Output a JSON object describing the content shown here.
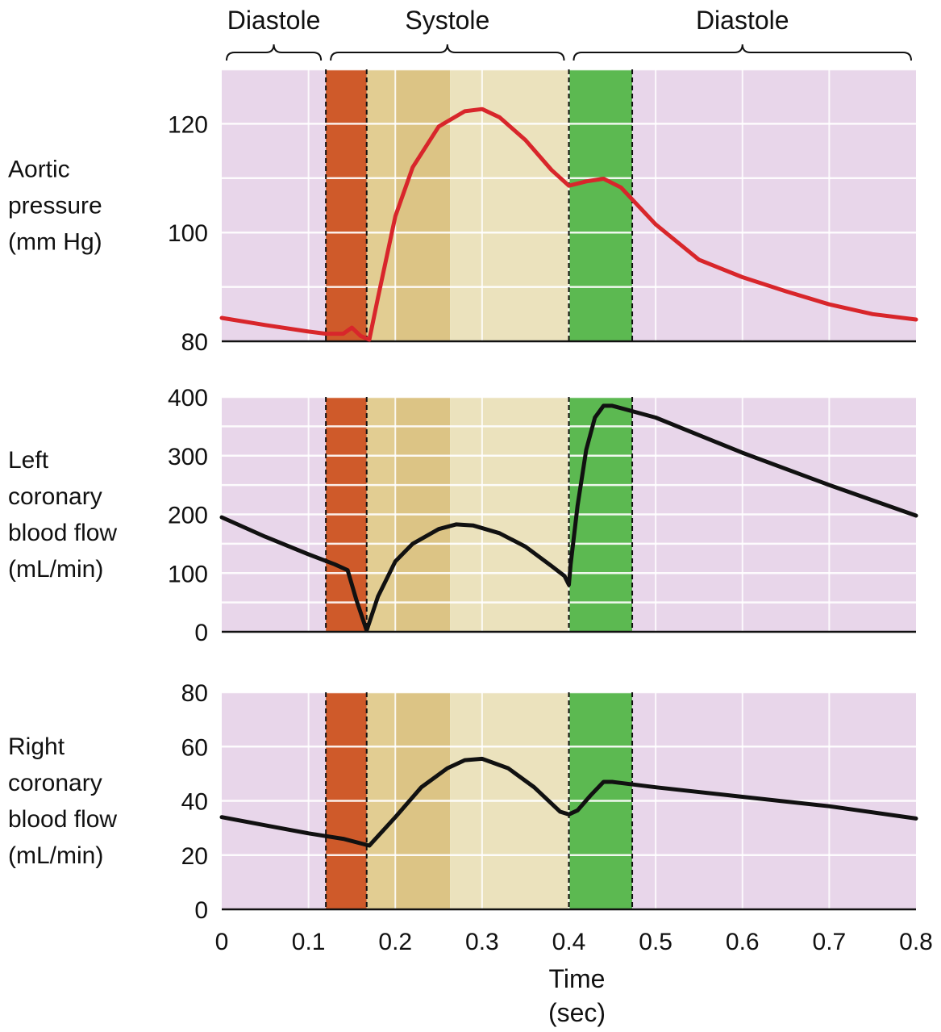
{
  "chart_data": {
    "type": "line",
    "x_unit_note": "",
    "xlim": [
      0,
      0.8
    ],
    "x_ticks": [
      0,
      0.1,
      0.2,
      0.3,
      0.4,
      0.5,
      0.6,
      0.7,
      0.8
    ],
    "x_tick_labels": [
      "0",
      "0.1",
      "0.2",
      "0.3",
      "0.4",
      "0.5",
      "0.6",
      "0.7",
      "0.8"
    ],
    "xlabel_line1": "Time",
    "xlabel_line2": "(sec)",
    "phases": [
      {
        "label": "Diastole",
        "start": 0.0,
        "end": 0.12
      },
      {
        "label": "Systole",
        "start": 0.12,
        "end": 0.4
      },
      {
        "label": "Diastole",
        "start": 0.4,
        "end": 0.8
      }
    ],
    "bands": [
      {
        "start": 0.0,
        "end": 0.12,
        "color": "#e8d6ea"
      },
      {
        "start": 0.12,
        "end": 0.167,
        "color": "#cf5a2a"
      },
      {
        "start": 0.167,
        "end": 0.2,
        "color": "#e2cd92"
      },
      {
        "start": 0.2,
        "end": 0.263,
        "color": "#dcc485"
      },
      {
        "start": 0.263,
        "end": 0.4,
        "color": "#ebe2bd"
      },
      {
        "start": 0.4,
        "end": 0.473,
        "color": "#5cb951"
      },
      {
        "start": 0.473,
        "end": 0.8,
        "color": "#e8d6ea"
      }
    ],
    "dashed_lines": [
      0.12,
      0.167,
      0.4,
      0.473
    ],
    "panels": [
      {
        "ylabel_lines": [
          "Aortic",
          "pressure",
          "(mm Hg)"
        ],
        "ylim": [
          80,
          130
        ],
        "y_ticks": [
          80,
          100,
          120
        ],
        "y_tick_labels": [
          "80",
          "100",
          "120"
        ],
        "grid": [
          90,
          100,
          110,
          120,
          130
        ],
        "series": [
          {
            "color": "#d8262b",
            "x": [
              0.0,
              0.05,
              0.1,
              0.12,
              0.14,
              0.15,
              0.16,
              0.17,
              0.18,
              0.2,
              0.22,
              0.25,
              0.28,
              0.3,
              0.32,
              0.35,
              0.38,
              0.4,
              0.42,
              0.44,
              0.46,
              0.5,
              0.55,
              0.6,
              0.65,
              0.7,
              0.75,
              0.8
            ],
            "y": [
              84.3,
              83.0,
              81.8,
              81.4,
              81.4,
              82.5,
              81.0,
              80.3,
              88,
              103,
              112,
              119.5,
              122.3,
              122.7,
              121.2,
              117.0,
              111.5,
              108.6,
              109.4,
              109.9,
              108.3,
              101.5,
              95.0,
              91.8,
              89.2,
              86.8,
              85.0,
              84.0
            ]
          }
        ]
      },
      {
        "ylabel_lines": [
          "Left",
          "coronary",
          "blood flow",
          "(mL/min)"
        ],
        "ylim": [
          0,
          400
        ],
        "y_ticks": [
          0,
          100,
          200,
          300,
          400
        ],
        "y_tick_labels": [
          "0",
          "100",
          "200",
          "300",
          "400"
        ],
        "grid": [
          50,
          100,
          150,
          200,
          250,
          300,
          350,
          400
        ],
        "series": [
          {
            "color": "#111111",
            "x": [
              0.0,
              0.05,
              0.1,
              0.13,
              0.145,
              0.155,
              0.167,
              0.18,
              0.2,
              0.22,
              0.25,
              0.27,
              0.29,
              0.32,
              0.35,
              0.38,
              0.395,
              0.4,
              0.402,
              0.41,
              0.42,
              0.43,
              0.44,
              0.45,
              0.5,
              0.6,
              0.7,
              0.8
            ],
            "y": [
              195,
              162,
              132,
              115,
              105,
              55,
              2,
              60,
              120,
              150,
              175,
              183,
              181,
              168,
              145,
              112,
              95,
              80,
              115,
              215,
              310,
              365,
              385,
              385,
              365,
              305,
              250,
              198
            ]
          }
        ]
      },
      {
        "ylabel_lines": [
          "Right",
          "coronary",
          "blood flow",
          "(mL/min)"
        ],
        "ylim": [
          0,
          80
        ],
        "y_ticks": [
          0,
          20,
          40,
          60,
          80
        ],
        "y_tick_labels": [
          "0",
          "20",
          "40",
          "60",
          "80"
        ],
        "grid": [
          20,
          40,
          60,
          80
        ],
        "series": [
          {
            "color": "#111111",
            "x": [
              0.0,
              0.05,
              0.1,
              0.14,
              0.17,
              0.2,
              0.23,
              0.26,
              0.28,
              0.3,
              0.33,
              0.36,
              0.38,
              0.39,
              0.4,
              0.41,
              0.425,
              0.44,
              0.45,
              0.5,
              0.6,
              0.7,
              0.8
            ],
            "y": [
              34,
              31,
              28,
              26,
              23.5,
              34,
              45,
              52,
              55,
              55.5,
              52,
              45,
              39,
              36,
              35,
              36.5,
              42,
              47,
              47,
              45,
              41.5,
              38,
              33.5
            ]
          }
        ]
      }
    ]
  }
}
